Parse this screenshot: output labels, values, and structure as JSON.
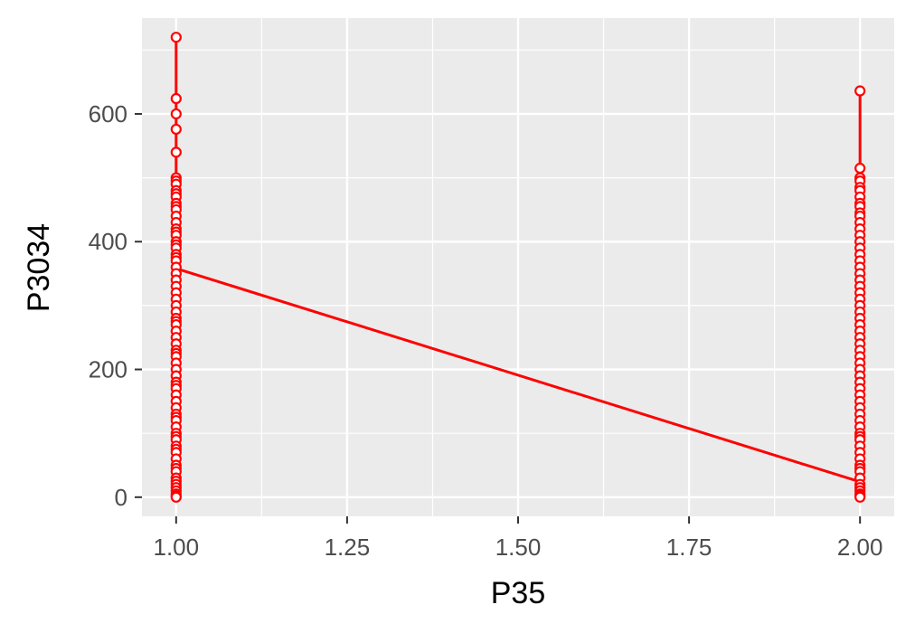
{
  "chart_data": {
    "type": "scatter",
    "title": "",
    "xlabel": "P35",
    "ylabel": "P3034",
    "xlim": [
      0.95,
      2.05
    ],
    "ylim": [
      -30,
      750
    ],
    "x_ticks": [
      1.0,
      1.25,
      1.5,
      1.75,
      2.0
    ],
    "x_tick_labels": [
      "1.00",
      "1.25",
      "1.50",
      "1.75",
      "2.00"
    ],
    "y_ticks": [
      0,
      200,
      400,
      600
    ],
    "y_tick_labels": [
      "0",
      "200",
      "400",
      "600"
    ],
    "grid": true,
    "legend": "none",
    "colors": {
      "panel": "#ebebeb",
      "grid": "#ffffff",
      "series": "#ff0000",
      "point_fill": "#ffffff",
      "tick_text": "#4d4d4d",
      "title_text": "#000000"
    },
    "series": [
      {
        "points": [
          [
            1,
            720
          ],
          [
            1,
            624
          ],
          [
            1,
            600
          ],
          [
            1,
            576
          ],
          [
            1,
            540
          ],
          [
            1,
            500
          ],
          [
            1,
            495
          ],
          [
            1,
            490
          ],
          [
            1,
            480
          ],
          [
            1,
            475
          ],
          [
            1,
            470
          ],
          [
            1,
            460
          ],
          [
            1,
            455
          ],
          [
            1,
            450
          ],
          [
            1,
            440
          ],
          [
            1,
            430
          ],
          [
            1,
            420
          ],
          [
            1,
            415
          ],
          [
            1,
            410
          ],
          [
            1,
            400
          ],
          [
            1,
            395
          ],
          [
            1,
            390
          ],
          [
            1,
            380
          ],
          [
            1,
            375
          ],
          [
            1,
            370
          ],
          [
            1,
            360
          ],
          [
            1,
            350
          ],
          [
            1,
            340
          ],
          [
            1,
            330
          ],
          [
            1,
            320
          ],
          [
            1,
            310
          ],
          [
            1,
            300
          ],
          [
            1,
            290
          ],
          [
            1,
            280
          ],
          [
            1,
            275
          ],
          [
            1,
            270
          ],
          [
            1,
            260
          ],
          [
            1,
            250
          ],
          [
            1,
            240
          ],
          [
            1,
            230
          ],
          [
            1,
            225
          ],
          [
            1,
            220
          ],
          [
            1,
            210
          ],
          [
            1,
            200
          ],
          [
            1,
            190
          ],
          [
            1,
            180
          ],
          [
            1,
            175
          ],
          [
            1,
            170
          ],
          [
            1,
            160
          ],
          [
            1,
            150
          ],
          [
            1,
            140
          ],
          [
            1,
            130
          ],
          [
            1,
            125
          ],
          [
            1,
            120
          ],
          [
            1,
            110
          ],
          [
            1,
            100
          ],
          [
            1,
            95
          ],
          [
            1,
            90
          ],
          [
            1,
            80
          ],
          [
            1,
            75
          ],
          [
            1,
            70
          ],
          [
            1,
            60
          ],
          [
            1,
            50
          ],
          [
            1,
            45
          ],
          [
            1,
            40
          ],
          [
            1,
            30
          ],
          [
            1,
            25
          ],
          [
            1,
            20
          ],
          [
            1,
            15
          ],
          [
            1,
            10
          ],
          [
            1,
            5
          ],
          [
            1,
            2
          ],
          [
            1,
            0
          ],
          [
            2,
            636
          ],
          [
            2,
            515
          ],
          [
            2,
            500
          ],
          [
            2,
            495
          ],
          [
            2,
            485
          ],
          [
            2,
            480
          ],
          [
            2,
            470
          ],
          [
            2,
            460
          ],
          [
            2,
            455
          ],
          [
            2,
            445
          ],
          [
            2,
            440
          ],
          [
            2,
            430
          ],
          [
            2,
            420
          ],
          [
            2,
            410
          ],
          [
            2,
            400
          ],
          [
            2,
            390
          ],
          [
            2,
            380
          ],
          [
            2,
            370
          ],
          [
            2,
            360
          ],
          [
            2,
            350
          ],
          [
            2,
            340
          ],
          [
            2,
            330
          ],
          [
            2,
            320
          ],
          [
            2,
            310
          ],
          [
            2,
            300
          ],
          [
            2,
            290
          ],
          [
            2,
            280
          ],
          [
            2,
            270
          ],
          [
            2,
            260
          ],
          [
            2,
            250
          ],
          [
            2,
            240
          ],
          [
            2,
            230
          ],
          [
            2,
            220
          ],
          [
            2,
            210
          ],
          [
            2,
            200
          ],
          [
            2,
            190
          ],
          [
            2,
            180
          ],
          [
            2,
            170
          ],
          [
            2,
            160
          ],
          [
            2,
            150
          ],
          [
            2,
            140
          ],
          [
            2,
            130
          ],
          [
            2,
            120
          ],
          [
            2,
            110
          ],
          [
            2,
            100
          ],
          [
            2,
            95
          ],
          [
            2,
            90
          ],
          [
            2,
            80
          ],
          [
            2,
            70
          ],
          [
            2,
            60
          ],
          [
            2,
            50
          ],
          [
            2,
            45
          ],
          [
            2,
            40
          ],
          [
            2,
            30
          ],
          [
            2,
            20
          ],
          [
            2,
            15
          ],
          [
            2,
            10
          ],
          [
            2,
            5
          ],
          [
            2,
            2
          ],
          [
            2,
            0
          ]
        ],
        "connecting_segment": [
          [
            1,
            358
          ],
          [
            2,
            24
          ]
        ]
      }
    ]
  }
}
